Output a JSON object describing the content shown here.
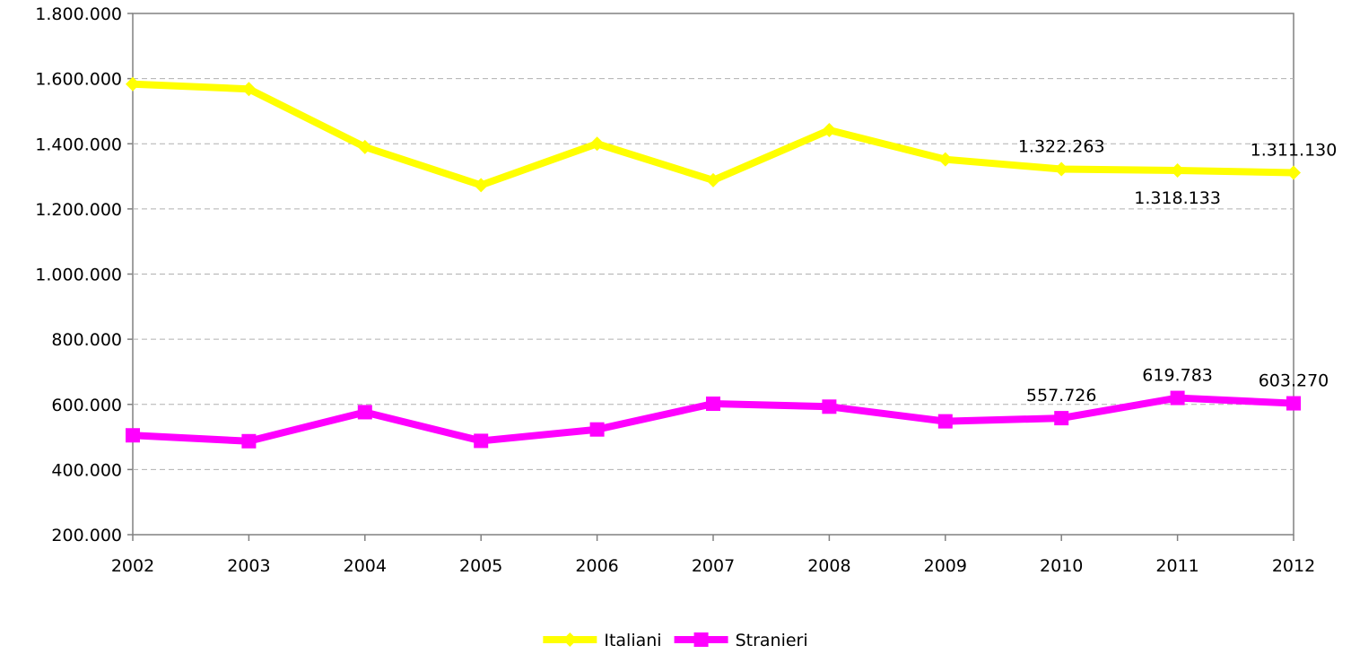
{
  "chart_data": {
    "type": "line",
    "title": "",
    "xlabel": "",
    "ylabel": "",
    "categories": [
      "2002",
      "2003",
      "2004",
      "2005",
      "2006",
      "2007",
      "2008",
      "2009",
      "2010",
      "2011",
      "2012"
    ],
    "ylim": [
      200000,
      1800000
    ],
    "yticks": [
      200000,
      400000,
      600000,
      800000,
      1000000,
      1200000,
      1400000,
      1600000,
      1800000
    ],
    "ytick_labels": [
      "200.000",
      "400.000",
      "600.000",
      "800.000",
      "1.000.000",
      "1.200.000",
      "1.400.000",
      "1.600.000",
      "1.800.000"
    ],
    "grid": "horizontal dashed",
    "legend_position": "bottom-center",
    "series": [
      {
        "name": "Italiani",
        "color": "#FFFF00",
        "marker": "diamond",
        "values": [
          1583000,
          1568000,
          1390000,
          1273000,
          1400000,
          1288000,
          1442000,
          1352000,
          1322263,
          1318133,
          1311130
        ]
      },
      {
        "name": "Stranieri",
        "color": "#FF00FF",
        "marker": "square",
        "values": [
          505000,
          487000,
          576000,
          488000,
          523000,
          602000,
          593000,
          548000,
          557726,
          619783,
          603270
        ]
      }
    ],
    "annotations": [
      {
        "series": 0,
        "index": 8,
        "text": "1.322.263",
        "placement": "above"
      },
      {
        "series": 0,
        "index": 9,
        "text": "1.318.133",
        "placement": "below"
      },
      {
        "series": 0,
        "index": 10,
        "text": "1.311.130",
        "placement": "above"
      },
      {
        "series": 1,
        "index": 8,
        "text": "557.726",
        "placement": "above"
      },
      {
        "series": 1,
        "index": 9,
        "text": "619.783",
        "placement": "above"
      },
      {
        "series": 1,
        "index": 10,
        "text": "603.270",
        "placement": "above"
      }
    ]
  }
}
